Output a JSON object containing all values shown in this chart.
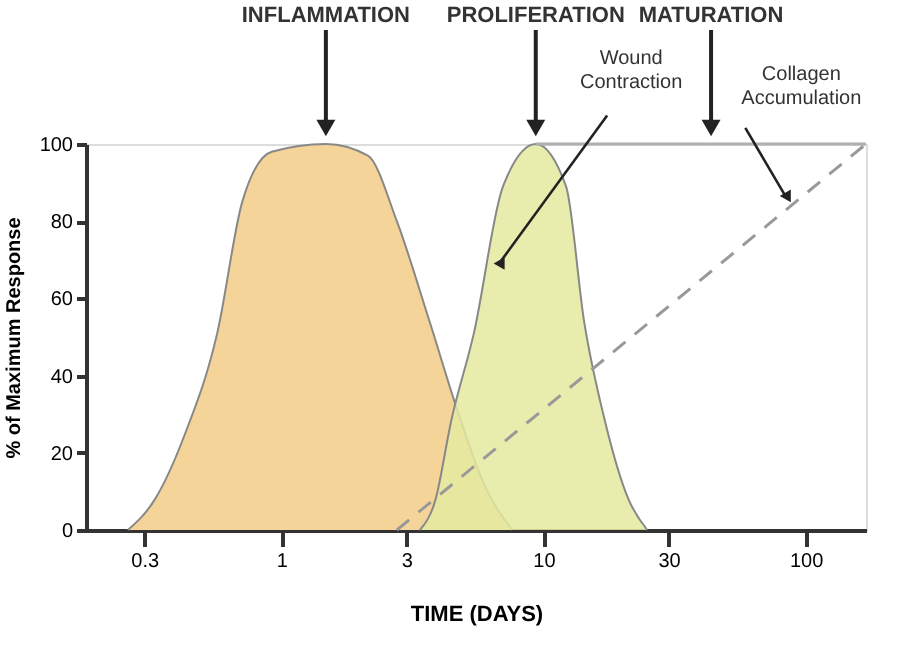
{
  "chart_data": {
    "type": "area",
    "xlabel": "TIME (DAYS)",
    "ylabel": "% of Maximum Response",
    "log": "x",
    "grid": false,
    "xlim": [
      0.18,
      170
    ],
    "xticks": [
      0.3,
      1,
      3,
      10,
      30,
      100
    ],
    "ylim": [
      0,
      100
    ],
    "yticks": [
      0,
      20,
      40,
      60,
      80,
      100
    ],
    "series": [
      {
        "color": "#f5d49a",
        "x": [
          0.26,
          0.33,
          0.43,
          0.57,
          0.71,
          0.92,
          1.48,
          2.14,
          2.76,
          3.68,
          4.75,
          5.92,
          7.6
        ],
        "values": [
          0,
          8,
          25,
          51,
          85,
          98,
          100,
          97,
          80,
          54,
          30,
          12,
          0
        ]
      },
      {
        "color": "#e4eaa0",
        "x": [
          3.38,
          3.88,
          4.44,
          5.43,
          7.01,
          9.35,
          12.2,
          14.3,
          17.2,
          21.1,
          24.9
        ],
        "values": [
          0,
          8,
          28,
          51,
          89,
          100,
          89,
          54,
          28,
          8,
          0
        ]
      },
      {
        "type": "line",
        "color": "#b0b0b0",
        "line_style": "solid",
        "x": [
          9.35,
          170
        ],
        "values": [
          100,
          100
        ]
      },
      {
        "type": "line",
        "color": "#999999",
        "line_style": "dashed",
        "x": [
          2.76,
          170
        ],
        "values": [
          0,
          100
        ]
      }
    ],
    "annotations": [
      {
        "text": "INFLAMMATION",
        "x": 1.48,
        "y": 100
      },
      {
        "text": "PROLIFERATION",
        "x": 9.35,
        "y": 100
      },
      {
        "text": "MATURATION",
        "x": 43.6,
        "y": 100
      },
      {
        "text": "Wound Contraction",
        "x": 6.1,
        "y": 68
      },
      {
        "text": "Collagen Accumulation",
        "x": 93,
        "y": 85
      }
    ]
  }
}
